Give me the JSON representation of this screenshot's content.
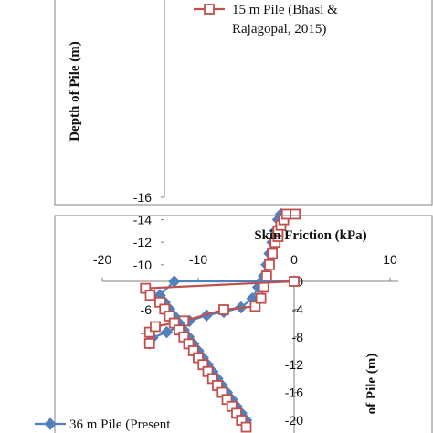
{
  "chart_data": [
    {
      "type": "line",
      "title": "",
      "xlabel": "",
      "ylabel": "Depth of Pile (m)",
      "ylim": [
        -16,
        0
      ],
      "yticks": [
        -4,
        -6,
        -8,
        -10,
        -12,
        -14,
        -16
      ],
      "grid": false,
      "legend_position": "top-right",
      "legend_lines": [
        "15 m Pile (Bhasi &",
        "Rajagopal, 2015)"
      ],
      "series": [
        {
          "name": "15 m Pile (Bhasi & Rajagopal, 2015)",
          "color": "#c0504d",
          "marker": "square",
          "x": [
            -25,
            -25,
            -24,
            -19,
            -12,
            -6.5,
            -5.5,
            -5,
            -4.5,
            -4,
            -3.5,
            -3,
            -2.5,
            -2.5,
            -2,
            -1.5,
            -1,
            0.5
          ],
          "y": [
            -3,
            -4,
            -4.5,
            -5,
            -6,
            -6.3,
            -7,
            -8,
            -9,
            -10,
            -11,
            -12,
            -12.5,
            -13,
            -13.5,
            -14,
            -14.5,
            -14.5
          ]
        },
        {
          "name": "",
          "color": "#4f81bd",
          "marker": "diamond",
          "x": [
            -25,
            -24.5,
            -22,
            -20,
            -18,
            -15,
            -12,
            -9,
            -7,
            -6,
            -5.5,
            -5,
            -4.5,
            -4,
            -3.5,
            -3,
            -2.5,
            -2
          ],
          "y": [
            -3,
            -3.5,
            -4,
            -4.5,
            -5,
            -5.5,
            -5.8,
            -6.2,
            -7,
            -8,
            -8.5,
            -9,
            -10,
            -11,
            -12,
            -13,
            -14,
            -14.5
          ]
        }
      ]
    },
    {
      "type": "line",
      "title": "Skin Friction (kPa)",
      "xlabel": "Skin Friction (kPa)",
      "ylabel": "of Pile (m)",
      "xlim": [
        -20,
        10
      ],
      "xticks": [
        -20,
        -10,
        0,
        10
      ],
      "ylim": [
        -20,
        0
      ],
      "yticks": [
        0,
        -4,
        -8,
        -12,
        -16,
        -20
      ],
      "grid": false,
      "legend_position": "bottom-left",
      "legend_lines": [
        "36 m Pile (Present"
      ],
      "series": [
        {
          "name": "36 m Pile (Present",
          "color": "#4f81bd",
          "marker": "diamond",
          "x": [
            0,
            -12.5,
            -14,
            -13.5,
            -13,
            -12.5,
            -12,
            -11.5,
            -11,
            -10.5,
            -10,
            -9.5,
            -9,
            -8.5,
            -8,
            -7.5,
            -7,
            -6.5,
            -6,
            -5.5,
            -5
          ],
          "y": [
            0,
            0,
            -2,
            -3,
            -4,
            -5,
            -6,
            -7,
            -8,
            -9,
            -10,
            -11,
            -12,
            -13,
            -14,
            -15,
            -16,
            -17,
            -18,
            -19,
            -20
          ]
        },
        {
          "name": "",
          "color": "#c0504d",
          "marker": "square",
          "x": [
            0,
            -15.5,
            -15,
            -14,
            -13.5,
            -13,
            -12.5,
            -12,
            -11.5,
            -11,
            -10.5,
            -10,
            -9.5,
            -9,
            -8.5,
            -8,
            -7.5,
            -7,
            -6.5,
            -6,
            -5.5,
            -5
          ],
          "y": [
            0,
            -1,
            -2,
            -3,
            -4,
            -5,
            -6,
            -7,
            -8,
            -9,
            -10,
            -11,
            -12,
            -13,
            -14,
            -15,
            -16,
            -17,
            -18,
            -19,
            -20,
            -21
          ]
        }
      ]
    }
  ]
}
